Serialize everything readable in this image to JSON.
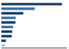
{
  "chart_data": {
    "type": "bar",
    "orientation": "horizontal",
    "categories": [
      null,
      null,
      null,
      null,
      null,
      null,
      null,
      null,
      null,
      null
    ],
    "values": [
      11088,
      6113,
      4016,
      2615,
      2575,
      2148,
      1978,
      1905,
      824,
      680
    ],
    "colors": [
      "#1a3a6b",
      "#2e75b6",
      "#1a3a6b",
      "#2e75b6",
      "#1a3a6b",
      "#2e75b6",
      "#1a3a6b",
      "#1a3a6b",
      "#1a3a6b",
      "#aec6e8"
    ],
    "xlim": [
      0,
      12000
    ],
    "grid": false,
    "tick_labels": false
  }
}
